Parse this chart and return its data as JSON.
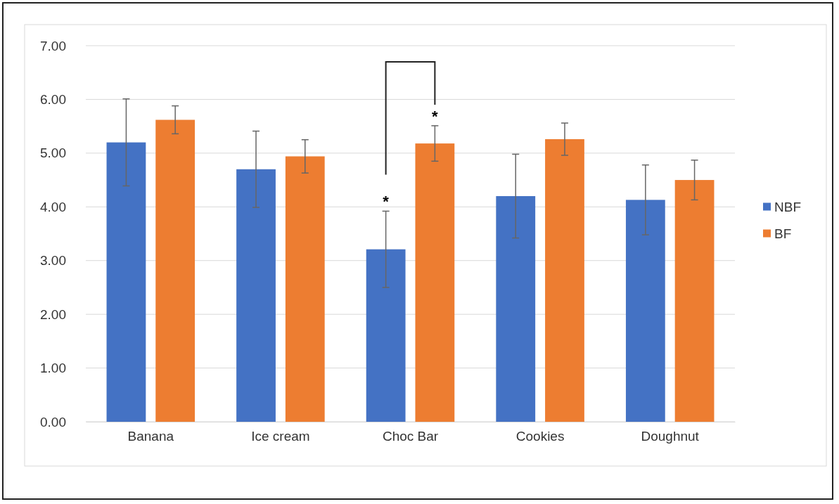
{
  "chart_data": {
    "type": "bar",
    "categories": [
      "Banana",
      "Ice cream",
      "Choc Bar",
      "Cookies",
      "Doughnut"
    ],
    "series": [
      {
        "name": "NBF",
        "color": "#4472c4",
        "values": [
          5.2,
          4.7,
          3.21,
          4.2,
          4.13
        ],
        "errors": [
          0.81,
          0.71,
          0.71,
          0.78,
          0.65
        ]
      },
      {
        "name": "BF",
        "color": "#ed7d31",
        "values": [
          5.62,
          4.94,
          5.18,
          5.26,
          4.5
        ],
        "errors": [
          0.26,
          0.31,
          0.33,
          0.3,
          0.37
        ]
      }
    ],
    "ylim": [
      0,
      7
    ],
    "yticks": [
      {
        "value": 0,
        "label": "0.00"
      },
      {
        "value": 1,
        "label": "1.00"
      },
      {
        "value": 2,
        "label": "2.00"
      },
      {
        "value": 3,
        "label": "3.00"
      },
      {
        "value": 4,
        "label": "4.00"
      },
      {
        "value": 5,
        "label": "5.00"
      },
      {
        "value": 6,
        "label": "6.00"
      },
      {
        "value": 7,
        "label": "7.00"
      }
    ],
    "grid": "y",
    "legend": "right",
    "annotations": [
      "*",
      "*"
    ]
  }
}
